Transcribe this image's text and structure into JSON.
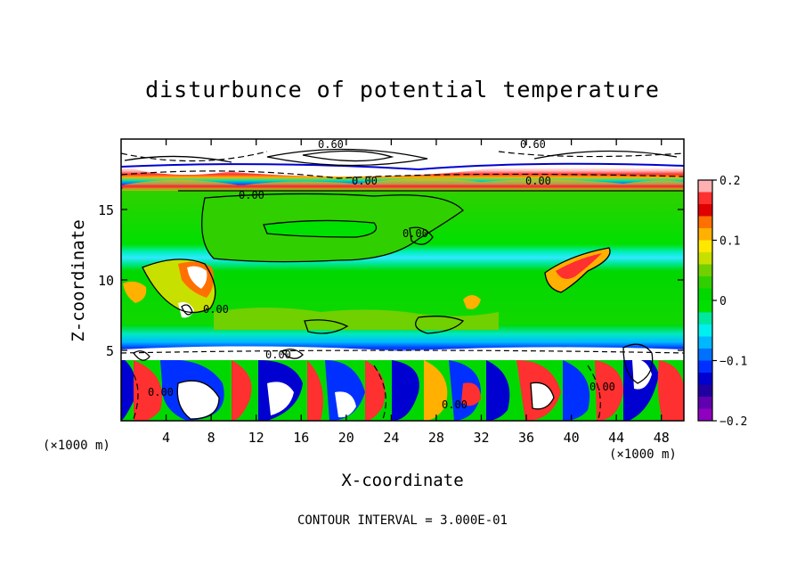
{
  "chart_data": {
    "type": "heatmap",
    "title": "disturbunce of potential temperature",
    "xlabel": "X-coordinate",
    "ylabel": "Z-coordinate",
    "x_unit": "(×1000 m)",
    "x_ticks": [
      "4",
      "8",
      "12",
      "16",
      "20",
      "24",
      "28",
      "32",
      "36",
      "40",
      "44",
      "48"
    ],
    "x_tick_values": [
      4,
      8,
      12,
      16,
      20,
      24,
      28,
      32,
      36,
      40,
      44,
      48
    ],
    "y_ticks": [
      "5",
      "10",
      "15"
    ],
    "y_tick_values": [
      5,
      10,
      15
    ],
    "xlim": [
      0,
      50
    ],
    "ylim": [
      0,
      20
    ],
    "colorbar": {
      "ticks": [
        "0.2",
        "0.1",
        "0",
        "−0.1",
        "−0.2"
      ],
      "tick_values": [
        0.2,
        0.1,
        0,
        -0.1,
        -0.2
      ],
      "range": [
        -0.2,
        0.2
      ],
      "colors": [
        "#ffb0b0",
        "#ff3030",
        "#e00000",
        "#ff7000",
        "#ffb000",
        "#ffe800",
        "#c8e000",
        "#70d000",
        "#30d000",
        "#00d800",
        "#00e000",
        "#00e8a0",
        "#00f0f0",
        "#00b8ff",
        "#0070ff",
        "#0030ff",
        "#0000d0",
        "#2000a0",
        "#6000b0",
        "#9000c0"
      ]
    },
    "contour_labels": [
      "0.60",
      "0.60",
      "0.00",
      "0.00",
      "0.00",
      "0.00",
      "0.00",
      "0.00",
      "0.00",
      "0.00",
      "0.00"
    ],
    "footer": "CONTOUR INTERVAL = 3.000E-01"
  }
}
